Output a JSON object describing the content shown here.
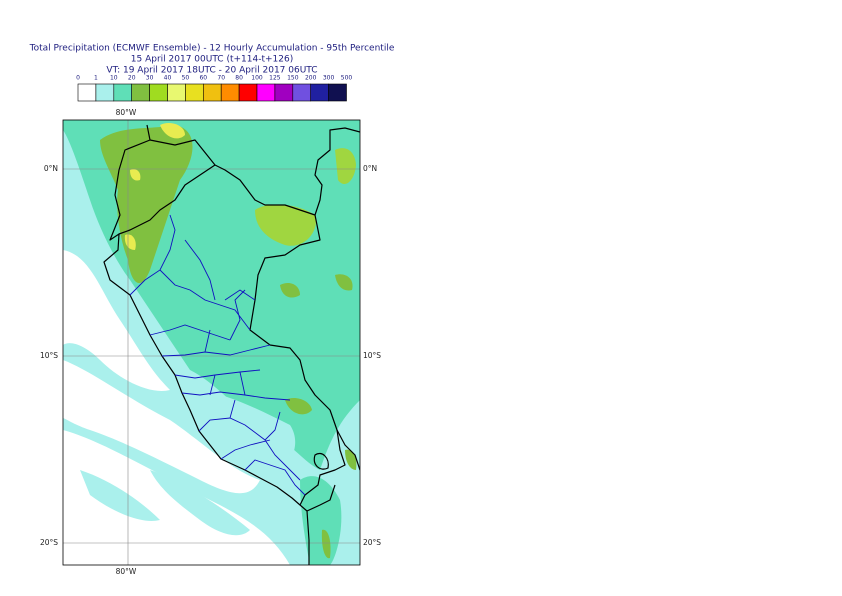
{
  "header": {
    "lines": [
      "Total Precipitation (ECMWF Ensemble) - 12 Hourly Accumulation - 95th Percentile",
      "15 April 2017 00UTC (t+114-t+126)",
      "VT: 19 April 2017 18UTC - 20 April 2017 06UTC"
    ]
  },
  "legend": {
    "labels": [
      0,
      1,
      10,
      20,
      30,
      40,
      50,
      60,
      70,
      80,
      100,
      125,
      150,
      200,
      300,
      500
    ],
    "colors": [
      "#ffffff",
      "#aaf0ec",
      "#5fdfb7",
      "#80c040",
      "#a0dc20",
      "#e8f870",
      "#e8e020",
      "#f0c010",
      "#ff8c00",
      "#ff0000",
      "#ff00ff",
      "#a000c0",
      "#7050e0",
      "#2020a0",
      "#101050"
    ]
  },
  "map": {
    "lon_labels": [
      "80°W"
    ],
    "lat_labels": [
      "0°N",
      "10°S",
      "20°S"
    ]
  }
}
